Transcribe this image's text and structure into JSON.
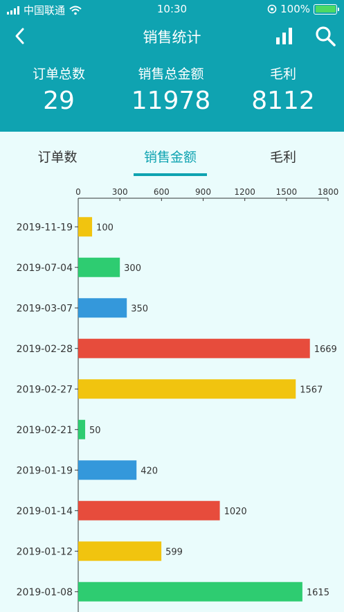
{
  "status_bar": {
    "carrier": "中国联通",
    "time": "10:30",
    "battery": "100%"
  },
  "nav": {
    "title": "销售统计",
    "back_icon": "chevron-left-icon",
    "chart_icon": "bar-chart-icon",
    "search_icon": "search-icon"
  },
  "summary": [
    {
      "label": "订单总数",
      "value": "29"
    },
    {
      "label": "销售总金额",
      "value": "11978"
    },
    {
      "label": "毛利",
      "value": "8112"
    }
  ],
  "tabs": [
    {
      "label": "订单数"
    },
    {
      "label": "销售金额"
    },
    {
      "label": "毛利"
    }
  ],
  "active_tab": "销售金额",
  "colors": {
    "header": "#0fa3b1",
    "background": "#eafcfc"
  },
  "chart_data": {
    "type": "bar",
    "orientation": "horizontal",
    "axis_position": "top",
    "xlim": [
      0,
      1800
    ],
    "xticks": [
      0,
      300,
      600,
      900,
      1200,
      1500,
      1800
    ],
    "categories": [
      "2019-11-19",
      "2019-07-04",
      "2019-03-07",
      "2019-02-28",
      "2019-02-27",
      "2019-02-21",
      "2019-01-19",
      "2019-01-14",
      "2019-01-12",
      "2019-01-08"
    ],
    "values": [
      100,
      300,
      350,
      1669,
      1567,
      50,
      420,
      1020,
      599,
      1615
    ],
    "colors": [
      "#f1c40f",
      "#2ecc71",
      "#3498db",
      "#e74c3c",
      "#f1c40f",
      "#2ecc71",
      "#3498db",
      "#e74c3c",
      "#f1c40f",
      "#2ecc71"
    ]
  }
}
